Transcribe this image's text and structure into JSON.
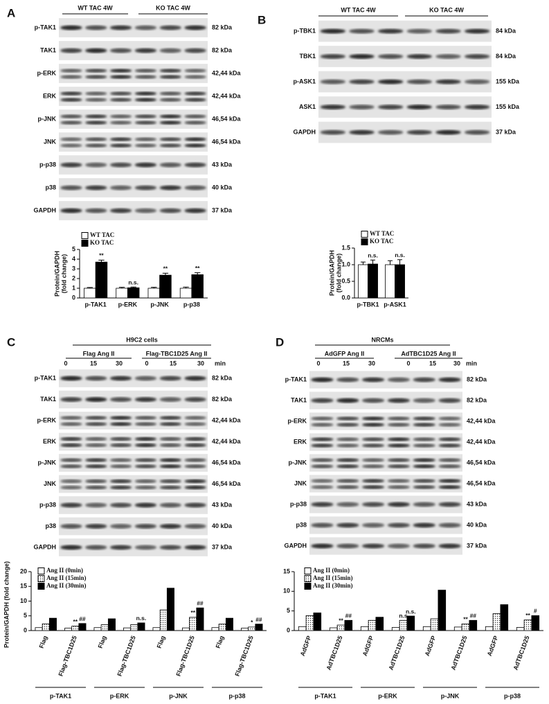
{
  "panels": [
    {
      "letter": "A",
      "groups": [
        "WT TAC 4W",
        "KO TAC 4W"
      ],
      "rows": [
        {
          "label": "p-TAK1",
          "size": "82 kDa"
        },
        {
          "label": "TAK1",
          "size": "82 kDa"
        },
        {
          "label": "p-ERK",
          "size": "42,44 kDa"
        },
        {
          "label": "ERK",
          "size": "42,44 kDa"
        },
        {
          "label": "p-JNK",
          "size": "46,54 kDa"
        },
        {
          "label": "JNK",
          "size": "46,54 kDa"
        },
        {
          "label": "p-p38",
          "size": "43 kDa"
        },
        {
          "label": "p38",
          "size": "40 kDa"
        },
        {
          "label": "GAPDH",
          "size": "37 kDa"
        }
      ]
    },
    {
      "letter": "B",
      "groups": [
        "WT TAC 4W",
        "KO TAC 4W"
      ],
      "rows": [
        {
          "label": "p-TBK1",
          "size": "84 kDa"
        },
        {
          "label": "TBK1",
          "size": "84 kDa"
        },
        {
          "label": "p-ASK1",
          "size": "155 kDa"
        },
        {
          "label": "ASK1",
          "size": "155 kDa"
        },
        {
          "label": "GAPDH",
          "size": "37 kDa"
        }
      ]
    },
    {
      "letter": "C",
      "title": "H9C2 cells",
      "groups": [
        "Flag Ang II",
        "Flag-TBC1D25 Ang II"
      ],
      "times": [
        "0",
        "15",
        "30",
        "0",
        "15",
        "30"
      ],
      "time_unit": "min",
      "rows": [
        {
          "label": "p-TAK1",
          "size": "82 kDa"
        },
        {
          "label": "TAK1",
          "size": "82 kDa"
        },
        {
          "label": "p-ERK",
          "size": "42,44 kDa"
        },
        {
          "label": "ERK",
          "size": "42,44 kDa"
        },
        {
          "label": "p-JNK",
          "size": "46,54 kDa"
        },
        {
          "label": "JNK",
          "size": "46,54 kDa"
        },
        {
          "label": "p-p38",
          "size": "43 kDa"
        },
        {
          "label": "p38",
          "size": "40 kDa"
        },
        {
          "label": "GAPDH",
          "size": "37 kDa"
        }
      ]
    },
    {
      "letter": "D",
      "title": "NRCMs",
      "groups": [
        "AdGFP Ang II",
        "AdTBC1D25 Ang II"
      ],
      "times": [
        "0",
        "15",
        "30",
        "0",
        "15",
        "30"
      ],
      "time_unit": "min",
      "rows": [
        {
          "label": "p-TAK1",
          "size": "82 kDa"
        },
        {
          "label": "TAK1",
          "size": "82 kDa"
        },
        {
          "label": "p-ERK",
          "size": "42,44 kDa"
        },
        {
          "label": "ERK",
          "size": "42,44 kDa"
        },
        {
          "label": "p-JNK",
          "size": "46,54 kDa"
        },
        {
          "label": "JNK",
          "size": "46,54 kDa"
        },
        {
          "label": "p-p38",
          "size": "43 kDa"
        },
        {
          "label": "p38",
          "size": "40 kDa"
        },
        {
          "label": "GAPDH",
          "size": "37 kDa"
        }
      ]
    }
  ],
  "chart_data": [
    {
      "type": "bar",
      "y_label": [
        "Protein/GAPDH",
        "(fold change)"
      ],
      "categories": [
        "p-TAK1",
        "p-ERK",
        "p-JNK",
        "p-p38"
      ],
      "series": [
        {
          "name": "WT TAC",
          "color": "#ffffff",
          "values": [
            1,
            1,
            1,
            1
          ],
          "errors": [
            0.08,
            0.1,
            0.1,
            0.12
          ]
        },
        {
          "name": "KO TAC",
          "color": "#000000",
          "values": [
            3.7,
            1.05,
            2.35,
            2.4
          ],
          "errors": [
            0.2,
            0.08,
            0.2,
            0.2
          ],
          "annotations": [
            "**",
            "n.s.",
            "**",
            "**"
          ]
        }
      ],
      "ylim": [
        0,
        5
      ],
      "yticks": [
        0,
        1,
        2,
        3,
        4,
        5
      ]
    },
    {
      "type": "bar",
      "y_label": [
        "Protein/GAPDH",
        "(fold change)"
      ],
      "categories": [
        "p-TBK1",
        "p-ASK1"
      ],
      "series": [
        {
          "name": "WT TAC",
          "color": "#ffffff",
          "values": [
            1,
            1
          ],
          "errors": [
            0.08,
            0.12
          ]
        },
        {
          "name": "KO TAC",
          "color": "#000000",
          "values": [
            1.02,
            1.0
          ],
          "errors": [
            0.12,
            0.15
          ],
          "annotations": [
            "n.s.",
            "n.s."
          ]
        }
      ],
      "ylim": [
        0,
        1.5
      ],
      "yticks": [
        {
          "value": 0,
          "label": "0.0"
        },
        0.5,
        {
          "value": 1,
          "label": "1.0"
        },
        1.5
      ]
    },
    {
      "type": "bar",
      "y_label": "Protein/GAPDH (fold change)",
      "categories": [
        "Flag",
        "Flag-TBC1D25",
        "Flag",
        "Flag-TBC1D25",
        "Flag",
        "Flag-TBC1D25",
        "Flag",
        "Flag-TBC1D25"
      ],
      "groups": [
        "p-TAK1",
        "p-ERK",
        "p-JNK",
        "p-p38"
      ],
      "series": [
        {
          "name": "Ang II (0min)",
          "color": "#ffffff",
          "values": [
            1,
            0.8,
            1,
            0.9,
            1,
            0.9,
            1,
            0.8
          ]
        },
        {
          "name": "Ang II (15min)",
          "color": "#ffffff",
          "pattern": "dots",
          "values": [
            2.3,
            1.5,
            2,
            2.0,
            7,
            4.5,
            2.2,
            1.2
          ],
          "annotations": [
            null,
            "**",
            null,
            null,
            null,
            "**",
            null,
            "*"
          ]
        },
        {
          "name": "Ang II (30min)",
          "color": "#000000",
          "values": [
            4.2,
            2.4,
            4,
            2.6,
            14.4,
            7.7,
            4.2,
            2.2
          ],
          "annotations": [
            null,
            "##",
            null,
            "n.s.",
            null,
            "##",
            null,
            "##"
          ]
        }
      ],
      "ylim": [
        0,
        20
      ],
      "yticks": [
        0,
        5,
        10,
        15,
        20
      ]
    },
    {
      "type": "bar",
      "categories": [
        "AdGFP",
        "AdTBC1D25",
        "AdGFP",
        "AdTBC1D25",
        "AdGFP",
        "AdTBC1D25",
        "AdGFP",
        "AdTBC1D25"
      ],
      "groups": [
        "p-TAK1",
        "p-ERK",
        "p-JNK",
        "p-p38"
      ],
      "series": [
        {
          "name": "Ang II (0min)",
          "color": "#ffffff",
          "values": [
            1,
            0.7,
            1,
            0.8,
            1,
            0.9,
            1,
            0.8
          ]
        },
        {
          "name": "Ang II (15min)",
          "color": "#ffffff",
          "pattern": "dots",
          "values": [
            3.8,
            1.4,
            2.6,
            2.6,
            3,
            1.7,
            4.3,
            2.7
          ],
          "annotations": [
            null,
            "**",
            null,
            "n.s",
            null,
            "**",
            null,
            "**"
          ]
        },
        {
          "name": "Ang II (30min)",
          "color": "#000000",
          "values": [
            4.5,
            2.6,
            3.4,
            3.7,
            10.3,
            2.6,
            6.6,
            3.8
          ],
          "annotations": [
            null,
            "##",
            null,
            "n.s.",
            null,
            "##",
            null,
            "#"
          ]
        }
      ],
      "ylim": [
        0,
        15
      ],
      "yticks": [
        0,
        5,
        10,
        15
      ]
    }
  ]
}
